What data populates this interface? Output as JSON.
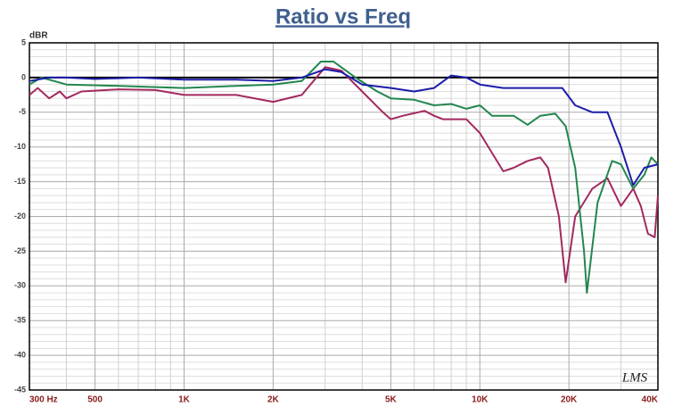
{
  "chart_data": {
    "type": "line",
    "title": "Ratio vs Freq",
    "ylabel": "dBR",
    "watermark": "LMS",
    "log_x": true,
    "grid": true,
    "xlim": [
      300,
      40000
    ],
    "ylim": [
      -45,
      5
    ],
    "xticks": [
      {
        "value": 300,
        "label": "300 Hz"
      },
      500,
      {
        "value": 1000,
        "label": "1K"
      },
      {
        "value": 2000,
        "label": "2K"
      },
      {
        "value": 5000,
        "label": "5K"
      },
      {
        "value": 10000,
        "label": "10K"
      },
      {
        "value": 20000,
        "label": "20K"
      },
      {
        "value": 40000,
        "label": "40K"
      }
    ],
    "x_minor_ticks": [
      400,
      600,
      700,
      800,
      900,
      3000,
      4000,
      6000,
      7000,
      8000,
      9000,
      30000
    ],
    "yticks": [
      -45,
      -40,
      -35,
      -30,
      -25,
      -20,
      -15,
      -10,
      -5,
      0,
      5
    ],
    "y_minor_ticks": [
      -44,
      -43,
      -42,
      -41,
      -39,
      -38,
      -37,
      -36,
      -34,
      -33,
      -32,
      -31,
      -29,
      -28,
      -27,
      -26,
      -24,
      -23,
      -22,
      -21,
      -19,
      -18,
      -17,
      -16,
      -14,
      -13,
      -12,
      -11,
      -9,
      -8,
      -7,
      -6,
      -4,
      -3,
      -2,
      -1,
      1,
      2,
      3,
      4
    ],
    "series": [
      {
        "color": "#a3295f",
        "x": [
          300,
          320,
          350,
          380,
          400,
          450,
          600,
          800,
          1000,
          1500,
          2000,
          2500,
          3000,
          3400,
          4000,
          4700,
          5000,
          5500,
          6500,
          7000,
          7500,
          9000,
          10000,
          12000,
          13000,
          14500,
          16000,
          17000,
          18500,
          19500,
          21000,
          24000,
          27000,
          30000,
          33000,
          35000,
          37000,
          39000,
          40000
        ],
        "values": [
          -2.5,
          -1.5,
          -3,
          -2,
          -3,
          -2,
          -1.7,
          -1.8,
          -2.5,
          -2.5,
          -3.5,
          -2.5,
          1.5,
          1,
          -2,
          -5,
          -6,
          -5.5,
          -4.8,
          -5.5,
          -6,
          -6,
          -8,
          -13.5,
          -13,
          -12,
          -11.5,
          -13,
          -20,
          -29.5,
          -20,
          -16,
          -14.5,
          -18.5,
          -16,
          -18.5,
          -22.5,
          -23,
          -17
        ]
      },
      {
        "color": "#23864f",
        "x": [
          300,
          330,
          400,
          600,
          1000,
          1500,
          2000,
          2500,
          2900,
          3200,
          3800,
          4500,
          5000,
          6000,
          7000,
          8000,
          9000,
          10000,
          11000,
          13000,
          14500,
          16000,
          18000,
          19500,
          21000,
          22500,
          23000,
          25000,
          28000,
          30000,
          33000,
          36000,
          38000,
          40000
        ],
        "values": [
          -1,
          0,
          -1,
          -1.2,
          -1.5,
          -1.2,
          -1,
          -0.5,
          2.3,
          2.3,
          0,
          -2,
          -3,
          -3.2,
          -4,
          -3.8,
          -4.5,
          -4,
          -5.5,
          -5.5,
          -6.8,
          -5.5,
          -5.2,
          -7,
          -13,
          -25,
          -31,
          -18,
          -12,
          -12.5,
          -16,
          -14,
          -11.5,
          -12.5
        ]
      },
      {
        "color": "#1c1ca8",
        "x": [
          300,
          350,
          400,
          500,
          700,
          1000,
          1500,
          2000,
          2500,
          3000,
          3400,
          4000,
          5000,
          6000,
          7000,
          8000,
          9000,
          10000,
          12000,
          17000,
          19000,
          21000,
          24000,
          27000,
          30000,
          33000,
          36000,
          40000
        ],
        "values": [
          -0.5,
          0,
          0,
          -0.2,
          0,
          -0.3,
          -0.3,
          -0.5,
          0,
          1.2,
          0.8,
          -1,
          -1.5,
          -2,
          -1.5,
          0.3,
          0,
          -1,
          -1.5,
          -1.5,
          -1.5,
          -4,
          -5,
          -5,
          -10,
          -15.5,
          -13,
          -12.5
        ]
      }
    ]
  }
}
